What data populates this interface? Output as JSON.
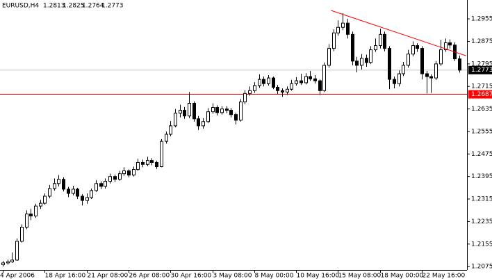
{
  "chart_data": {
    "type": "candlestick",
    "symbol": "EURUSD,H4",
    "header_ohlc": [
      1.2813,
      1.2825,
      1.2764,
      1.2773
    ],
    "categories": [
      "4 Apr 2006",
      null,
      null,
      null,
      null,
      null,
      null,
      null,
      null,
      "18 Apr 16:00",
      null,
      null,
      null,
      null,
      null,
      null,
      null,
      null,
      "21 Apr 08:00",
      null,
      null,
      null,
      null,
      null,
      null,
      null,
      null,
      "26 Apr 08:00",
      null,
      null,
      null,
      null,
      null,
      null,
      null,
      null,
      "30 Apr 16:00",
      null,
      null,
      null,
      null,
      null,
      null,
      null,
      null,
      "3 May 08:00",
      null,
      null,
      null,
      null,
      null,
      null,
      null,
      null,
      "8 May 00:00",
      null,
      null,
      null,
      null,
      null,
      null,
      null,
      null,
      "10 May 16:00",
      null,
      null,
      null,
      null,
      null,
      null,
      null,
      null,
      "15 May 08:00",
      null,
      null,
      null,
      null,
      null,
      null,
      null,
      null,
      "18 May 00:00",
      null,
      null,
      null,
      null,
      null,
      null,
      null,
      null,
      "22 May 16:00",
      null,
      null,
      null,
      null,
      null,
      null,
      null,
      null
    ],
    "open": [
      1.2082,
      1.2088,
      1.2092,
      1.2098,
      1.2165,
      1.2215,
      1.2262,
      1.2255,
      1.229,
      1.23,
      1.2325,
      1.2352,
      1.237,
      1.2385,
      1.235,
      1.2335,
      1.235,
      1.2325,
      1.231,
      1.232,
      1.2345,
      1.237,
      1.236,
      1.2378,
      1.2395,
      1.2385,
      1.2405,
      1.2415,
      1.24,
      1.242,
      1.2445,
      1.2438,
      1.2452,
      1.2445,
      1.243,
      1.252,
      1.2545,
      1.2575,
      1.262,
      1.263,
      1.261,
      1.2655,
      1.26,
      1.2575,
      1.259,
      1.2625,
      1.264,
      1.2622,
      1.2635,
      1.263,
      1.2615,
      1.2595,
      1.266,
      1.269,
      1.27,
      1.2718,
      1.274,
      1.2725,
      1.2745,
      1.2712,
      1.27,
      1.2695,
      1.2705,
      1.2725,
      1.2735,
      1.2728,
      1.275,
      1.2742,
      1.2735,
      1.27,
      1.279,
      1.285,
      1.2905,
      1.2925,
      1.294,
      1.29,
      1.2805,
      1.279,
      1.2815,
      1.28,
      1.2845,
      1.286,
      1.29,
      1.285,
      1.274,
      1.2725,
      1.276,
      1.279,
      1.283,
      1.286,
      1.285,
      1.276,
      1.275,
      1.2745,
      1.2795,
      1.2845,
      1.287,
      1.2862,
      1.2813
    ],
    "high": [
      1.2095,
      1.21,
      1.2125,
      1.2175,
      1.2225,
      1.2275,
      1.228,
      1.2298,
      1.2312,
      1.2335,
      1.2365,
      1.2388,
      1.24,
      1.2392,
      1.2358,
      1.2362,
      1.2355,
      1.2332,
      1.2335,
      1.2352,
      1.2382,
      1.2378,
      1.2388,
      1.2405,
      1.2402,
      1.2415,
      1.2428,
      1.242,
      1.243,
      1.2458,
      1.2455,
      1.2465,
      1.246,
      1.245,
      1.2528,
      1.2555,
      1.2592,
      1.2635,
      1.265,
      1.2642,
      1.2695,
      1.2662,
      1.261,
      1.2602,
      1.2638,
      1.2655,
      1.2648,
      1.2645,
      1.2645,
      1.2638,
      1.2622,
      1.267,
      1.2702,
      1.2715,
      1.273,
      1.2758,
      1.275,
      1.2755,
      1.275,
      1.272,
      1.2708,
      1.2715,
      1.2738,
      1.2748,
      1.276,
      1.2762,
      1.277,
      1.2755,
      1.274,
      1.28,
      1.2865,
      1.2918,
      1.295,
      1.2975,
      1.2955,
      1.291,
      1.282,
      1.283,
      1.2828,
      1.2858,
      1.2885,
      1.292,
      1.291,
      1.2858,
      1.275,
      1.2772,
      1.2802,
      1.2845,
      1.2875,
      1.2868,
      1.2858,
      1.277,
      1.2758,
      1.2805,
      1.288,
      1.2885,
      1.2882,
      1.2872,
      1.2825
    ],
    "low": [
      1.2075,
      1.2082,
      1.2088,
      1.2095,
      1.216,
      1.2208,
      1.224,
      1.2248,
      1.228,
      1.2295,
      1.2318,
      1.2345,
      1.236,
      1.2342,
      1.2322,
      1.2328,
      1.2315,
      1.2292,
      1.2298,
      1.2315,
      1.234,
      1.235,
      1.2352,
      1.237,
      1.2375,
      1.238,
      1.2398,
      1.2392,
      1.2395,
      1.2415,
      1.2428,
      1.2432,
      1.2435,
      1.2422,
      1.2428,
      1.2512,
      1.2538,
      1.257,
      1.2605,
      1.26,
      1.2602,
      1.259,
      1.256,
      1.2565,
      1.2585,
      1.2618,
      1.2612,
      1.2615,
      1.262,
      1.2605,
      1.258,
      1.259,
      1.2652,
      1.2682,
      1.2692,
      1.271,
      1.2715,
      1.2718,
      1.2705,
      1.2688,
      1.2678,
      1.2685,
      1.27,
      1.2718,
      1.272,
      1.2722,
      1.2735,
      1.2725,
      1.2685,
      1.2695,
      1.2782,
      1.284,
      1.2895,
      1.2915,
      1.2885,
      1.279,
      1.2765,
      1.2775,
      1.2785,
      1.2795,
      1.2838,
      1.285,
      1.284,
      1.2705,
      1.2708,
      1.2715,
      1.2752,
      1.2782,
      1.2822,
      1.2838,
      1.274,
      1.269,
      1.2692,
      1.2738,
      1.2788,
      1.2838,
      1.285,
      1.2805,
      1.2764
    ],
    "close": [
      1.2088,
      1.2092,
      1.2098,
      1.2165,
      1.2215,
      1.2262,
      1.2255,
      1.229,
      1.23,
      1.2325,
      1.2352,
      1.237,
      1.2385,
      1.235,
      1.2335,
      1.235,
      1.2325,
      1.231,
      1.232,
      1.2345,
      1.237,
      1.236,
      1.2378,
      1.2395,
      1.2385,
      1.2405,
      1.2415,
      1.24,
      1.242,
      1.2445,
      1.2438,
      1.2452,
      1.2445,
      1.243,
      1.252,
      1.2545,
      1.2575,
      1.262,
      1.263,
      1.261,
      1.2655,
      1.26,
      1.2575,
      1.259,
      1.2625,
      1.264,
      1.2622,
      1.2635,
      1.263,
      1.2615,
      1.2595,
      1.266,
      1.269,
      1.27,
      1.2718,
      1.274,
      1.2725,
      1.2745,
      1.2712,
      1.27,
      1.2695,
      1.2705,
      1.2725,
      1.2735,
      1.2728,
      1.275,
      1.2742,
      1.2735,
      1.27,
      1.279,
      1.285,
      1.2905,
      1.2925,
      1.294,
      1.29,
      1.2805,
      1.279,
      1.2815,
      1.28,
      1.2845,
      1.286,
      1.29,
      1.285,
      1.274,
      1.2725,
      1.276,
      1.279,
      1.283,
      1.286,
      1.285,
      1.276,
      1.275,
      1.2745,
      1.2795,
      1.2845,
      1.287,
      1.2862,
      1.2813,
      1.2773
    ],
    "ylim": [
      1.2063,
      1.3022
    ],
    "yticks": [
      1.2075,
      1.2155,
      1.2235,
      1.2315,
      1.2395,
      1.2475,
      1.2555,
      1.2635,
      1.2715,
      1.2795,
      1.2875,
      1.2955
    ],
    "bull_color": "#ffffff",
    "bear_color": "#000000",
    "candle_outline": "#000000",
    "trendline": {
      "x": [
        70.5,
        99.5
      ],
      "y": [
        1.2985,
        1.2824
      ],
      "color": "#ff0000"
    },
    "hline": {
      "value": 1.2687,
      "color": "#ff0000"
    },
    "bid": {
      "value": 1.2773,
      "color": "#c0c0c0"
    }
  }
}
